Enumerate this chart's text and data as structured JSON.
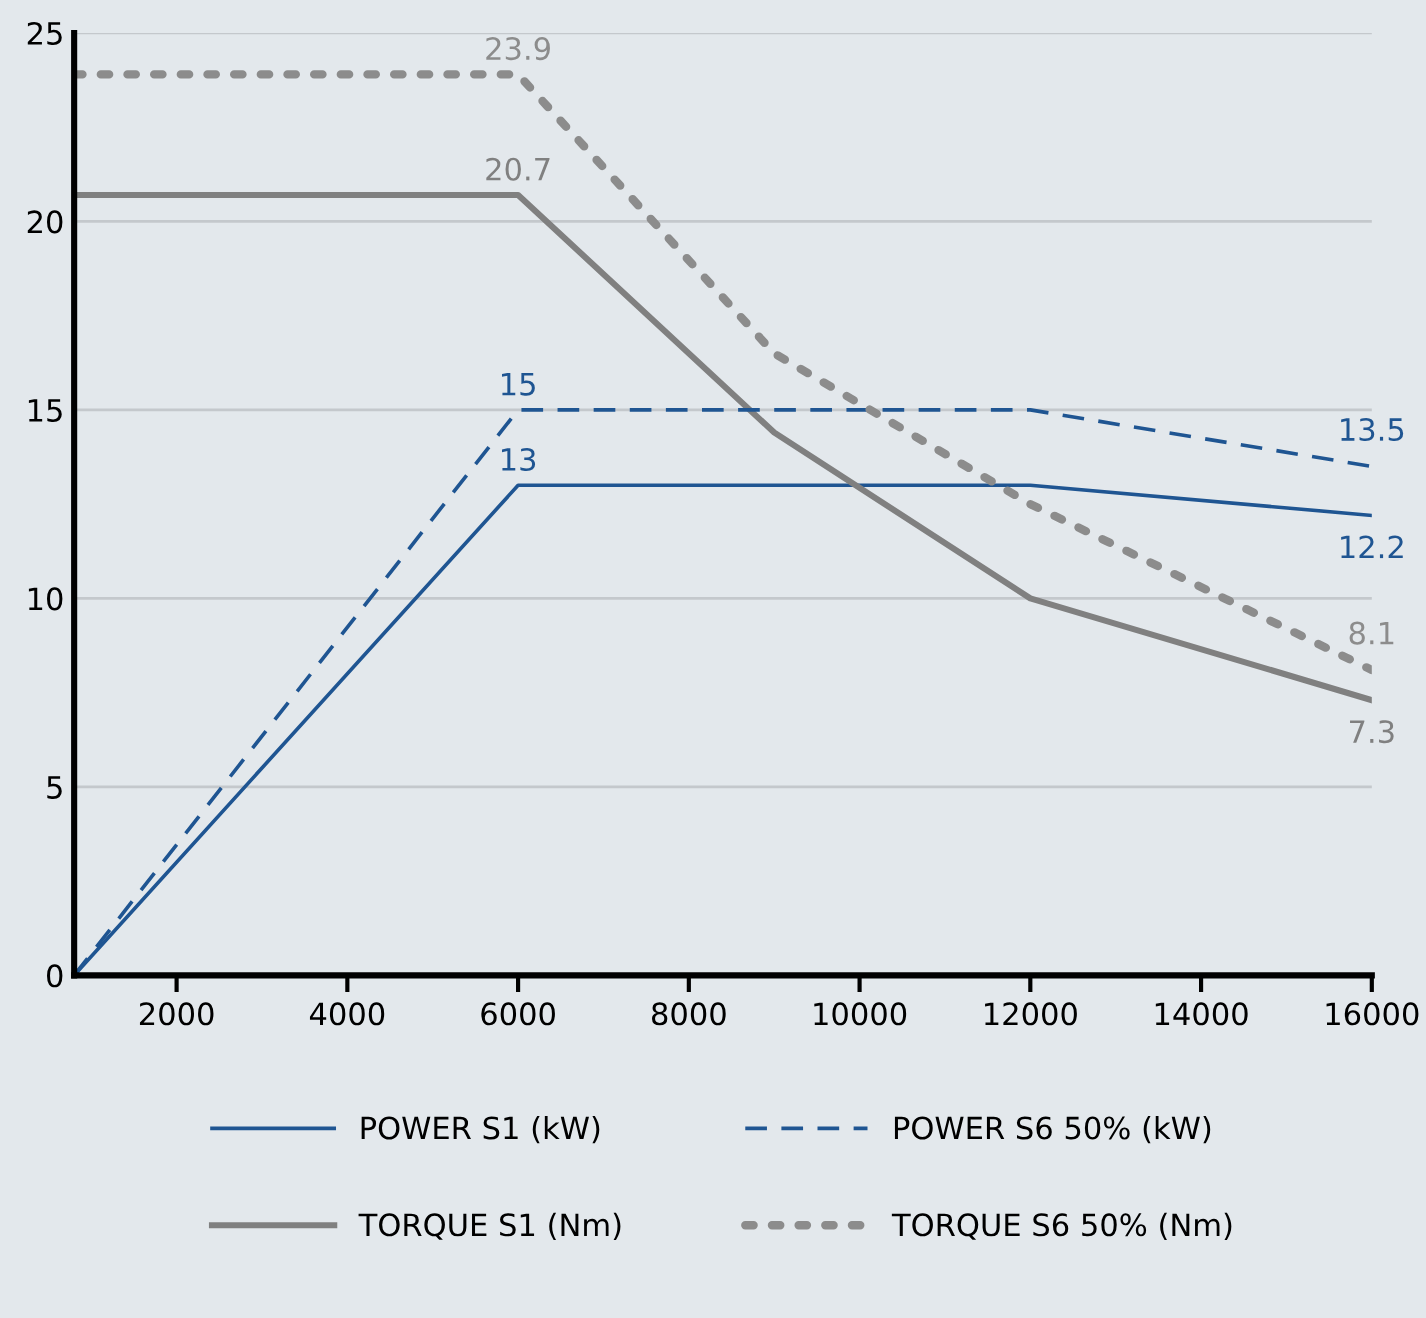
{
  "chart_data": {
    "type": "line",
    "xlim": [
      800,
      16000
    ],
    "xticks": [
      2000,
      4000,
      6000,
      8000,
      10000,
      12000,
      14000,
      16000
    ],
    "ylim": [
      0,
      25
    ],
    "yticks": [
      0,
      5,
      10,
      15,
      20,
      25
    ],
    "grid": "y",
    "legend": "bottom",
    "series": [
      {
        "name": "POWER S1 (kW)",
        "color": "#1f5592",
        "line_style": "solid",
        "x": [
          800,
          6000,
          12000,
          16000
        ],
        "values": [
          0,
          13,
          13,
          12.2
        ],
        "value_labels": [
          null,
          "13",
          null,
          "12.2"
        ]
      },
      {
        "name": "TORQUE S1 (Nm)",
        "color": "#808080",
        "line_style": "solid",
        "x": [
          800,
          6000,
          9000,
          12000,
          16000
        ],
        "values": [
          20.7,
          20.7,
          14.4,
          10,
          7.3
        ],
        "value_labels": [
          null,
          "20.7",
          null,
          null,
          "7.3"
        ]
      },
      {
        "name": "POWER S6 50% (kW)",
        "color": "#1f5592",
        "line_style": "dashed",
        "x": [
          800,
          6000,
          12000,
          16000
        ],
        "values": [
          0,
          15,
          15,
          13.5
        ],
        "value_labels": [
          null,
          "15",
          null,
          "13.5"
        ]
      },
      {
        "name": "TORQUE S6 50% (Nm)",
        "color": "#8c8c8c",
        "line_style": "dotted",
        "x": [
          800,
          6000,
          9000,
          12000,
          16000
        ],
        "values": [
          23.9,
          23.9,
          16.5,
          12.5,
          8.1
        ],
        "value_labels": [
          null,
          "23.9",
          null,
          null,
          "8.1"
        ]
      }
    ]
  }
}
